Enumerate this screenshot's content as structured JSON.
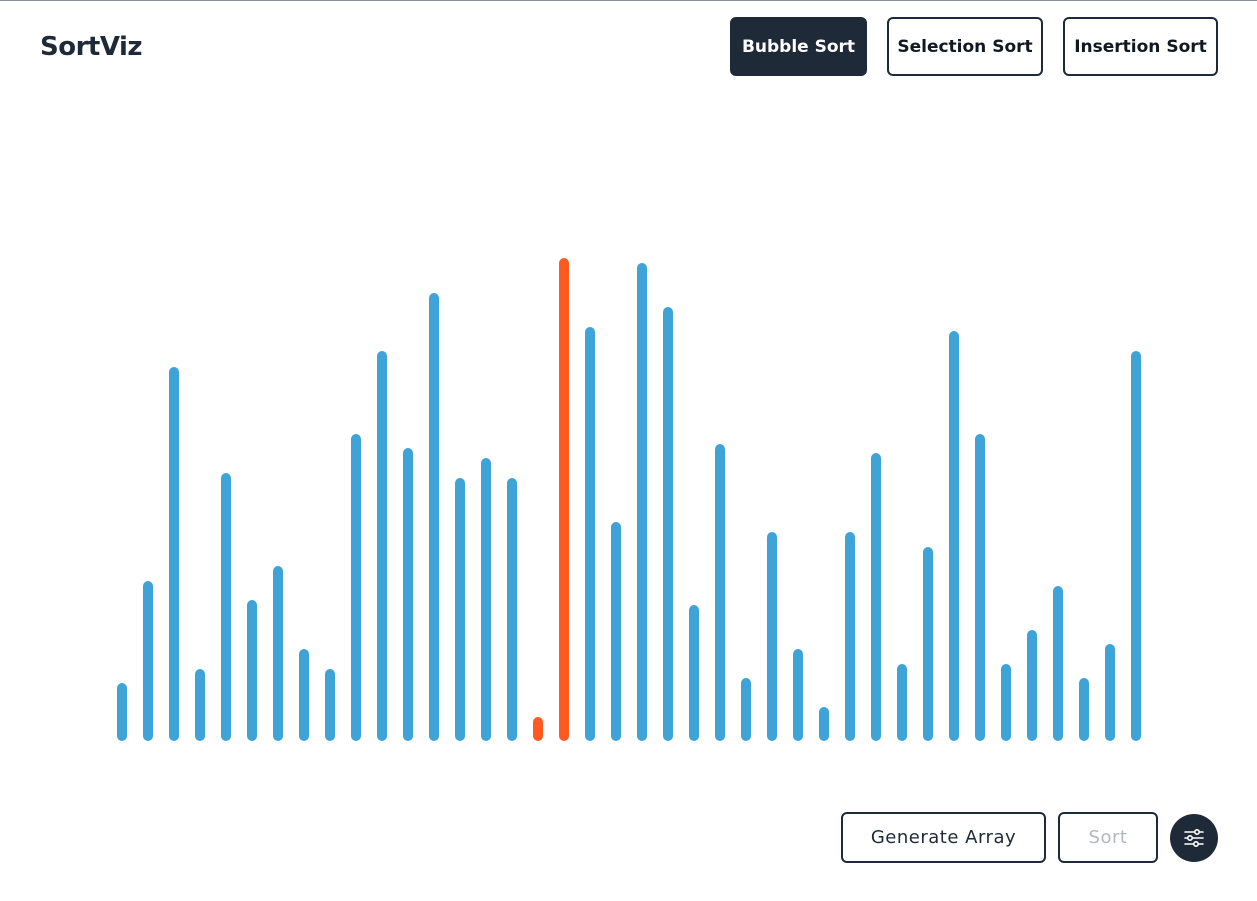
{
  "app": {
    "title": "SortViz"
  },
  "algorithms": {
    "items": [
      "Bubble Sort",
      "Selection Sort",
      "Insertion Sort"
    ],
    "selected": "Bubble Sort"
  },
  "controls": {
    "generate_label": "Generate Array",
    "sort_label": "Sort",
    "sort_disabled": true,
    "settings_icon": "sliders-icon"
  },
  "colors": {
    "bar": "#3ea4d8",
    "bar_active": "#ff5a1f",
    "primary": "#1f2a38"
  },
  "chart_data": {
    "type": "bar",
    "values": [
      58,
      160,
      373,
      72,
      267,
      141,
      175,
      92,
      72,
      306,
      389,
      292,
      447,
      262,
      282,
      262,
      24,
      482,
      413,
      219,
      477,
      433,
      136,
      296,
      63,
      209,
      92,
      34,
      209,
      287,
      77,
      194,
      409,
      306,
      77,
      111,
      155,
      63,
      97,
      389
    ],
    "active_indices": [
      16,
      17
    ],
    "ylim": [
      0,
      482
    ]
  }
}
